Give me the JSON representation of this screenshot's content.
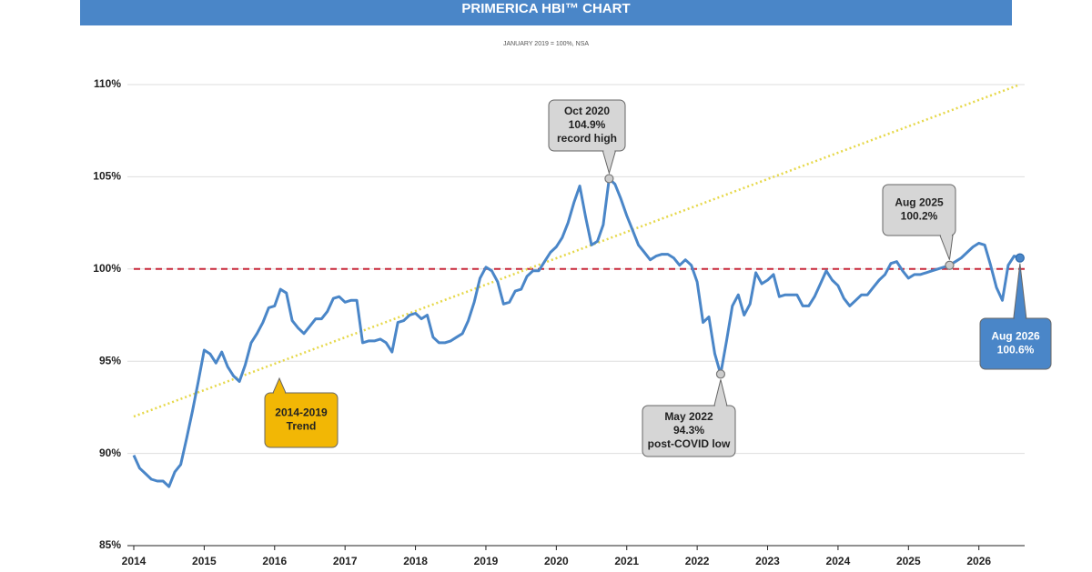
{
  "chart_data": {
    "type": "line",
    "title": "PRIMERICA HBI™ CHART",
    "subtitle": "JANUARY 2019 = 100%, NSA",
    "x": [
      "2014-01",
      "2014-02",
      "2014-03",
      "2014-04",
      "2014-05",
      "2014-06",
      "2014-07",
      "2014-08",
      "2014-09",
      "2014-10",
      "2014-11",
      "2014-12",
      "2015-01",
      "2015-02",
      "2015-03",
      "2015-04",
      "2015-05",
      "2015-06",
      "2015-07",
      "2015-08",
      "2015-09",
      "2015-10",
      "2015-11",
      "2015-12",
      "2016-01",
      "2016-02",
      "2016-03",
      "2016-04",
      "2016-05",
      "2016-06",
      "2016-07",
      "2016-08",
      "2016-09",
      "2016-10",
      "2016-11",
      "2016-12",
      "2017-01",
      "2017-02",
      "2017-03",
      "2017-04",
      "2017-05",
      "2017-06",
      "2017-07",
      "2017-08",
      "2017-09",
      "2017-10",
      "2017-11",
      "2017-12",
      "2018-01",
      "2018-02",
      "2018-03",
      "2018-04",
      "2018-05",
      "2018-06",
      "2018-07",
      "2018-08",
      "2018-09",
      "2018-10",
      "2018-11",
      "2018-12",
      "2019-01",
      "2019-02",
      "2019-03",
      "2019-04",
      "2019-05",
      "2019-06",
      "2019-07",
      "2019-08",
      "2019-09",
      "2019-10",
      "2019-11",
      "2019-12",
      "2020-01",
      "2020-02",
      "2020-03",
      "2020-04",
      "2020-05",
      "2020-06",
      "2020-07",
      "2020-08",
      "2020-09",
      "2020-10",
      "2020-11",
      "2020-12",
      "2021-01",
      "2021-02",
      "2021-03",
      "2021-04",
      "2021-05",
      "2021-06",
      "2021-07",
      "2021-08",
      "2021-09",
      "2021-10",
      "2021-11",
      "2021-12",
      "2022-01",
      "2022-02",
      "2022-03",
      "2022-04",
      "2022-05",
      "2022-06",
      "2022-07",
      "2022-08",
      "2022-09",
      "2022-10",
      "2022-11",
      "2022-12",
      "2023-01",
      "2023-02",
      "2023-03",
      "2023-04",
      "2023-05",
      "2023-06",
      "2023-07",
      "2023-08",
      "2023-09",
      "2023-10",
      "2023-11",
      "2023-12",
      "2024-01",
      "2024-02",
      "2024-03",
      "2024-04",
      "2024-05",
      "2024-06",
      "2024-07",
      "2024-08",
      "2024-09",
      "2024-10",
      "2024-11",
      "2024-12",
      "2025-01",
      "2025-02",
      "2025-03",
      "2025-04",
      "2025-05",
      "2025-06",
      "2025-07",
      "2025-08",
      "2025-09",
      "2025-10",
      "2025-11",
      "2025-12",
      "2026-01",
      "2026-02",
      "2026-03",
      "2026-04",
      "2026-05",
      "2026-06",
      "2026-07",
      "2026-08"
    ],
    "series": [
      {
        "color": "#4a86c8",
        "values": [
          89.9,
          89.2,
          88.9,
          88.6,
          88.5,
          88.5,
          88.2,
          89.0,
          89.4,
          90.8,
          92.3,
          93.9,
          95.6,
          95.4,
          94.9,
          95.5,
          94.7,
          94.2,
          93.9,
          94.8,
          96.0,
          96.5,
          97.1,
          97.9,
          98.0,
          98.9,
          98.7,
          97.2,
          96.8,
          96.5,
          96.9,
          97.3,
          97.3,
          97.7,
          98.4,
          98.5,
          98.2,
          98.3,
          98.3,
          96.0,
          96.1,
          96.1,
          96.2,
          96.0,
          95.5,
          97.1,
          97.2,
          97.5,
          97.6,
          97.3,
          97.5,
          96.3,
          96.0,
          96.0,
          96.1,
          96.3,
          96.5,
          97.2,
          98.2,
          99.5,
          100.1,
          99.9,
          99.3,
          98.1,
          98.2,
          98.8,
          98.9,
          99.6,
          99.9,
          99.9,
          100.4,
          100.9,
          101.2,
          101.7,
          102.5,
          103.6,
          104.5,
          102.8,
          101.3,
          101.5,
          102.4,
          104.9,
          104.6,
          103.8,
          102.9,
          102.1,
          101.3,
          100.9,
          100.5,
          100.7,
          100.8,
          100.8,
          100.6,
          100.2,
          100.5,
          100.2,
          99.3,
          97.1,
          97.4,
          95.4,
          94.3,
          96.1,
          98.0,
          98.6,
          97.5,
          98.1,
          99.8,
          99.2,
          99.4,
          99.7,
          98.5,
          98.6,
          98.6,
          98.6,
          98.0,
          98.0,
          98.5,
          99.2,
          99.9,
          99.4,
          99.1,
          98.4,
          98.0,
          98.3,
          98.6,
          98.6,
          99.0,
          99.4,
          99.7,
          100.3,
          100.4,
          99.9,
          99.5,
          99.7,
          99.7,
          99.8,
          99.9,
          100.0,
          100.1,
          100.2,
          100.4,
          100.6,
          100.9,
          101.2,
          101.4,
          101.3,
          100.2,
          99.0,
          98.3,
          100.2,
          100.7,
          100.6
        ]
      }
    ],
    "trend_line": {
      "x": [
        "2014-01",
        "2026-08"
      ],
      "values": [
        92,
        110
      ],
      "color": "#e6d84a"
    },
    "reference_line": {
      "value": 100,
      "color": "#c8283a"
    },
    "xlim": [
      2014,
      2026.65
    ],
    "xticks": [
      2014,
      2015,
      2016,
      2017,
      2018,
      2019,
      2020,
      2021,
      2022,
      2023,
      2024,
      2025,
      2026
    ],
    "ylim": [
      85,
      110
    ],
    "yticks": [
      {
        "value": 85,
        "label": "85%"
      },
      {
        "value": 90,
        "label": "90%"
      },
      {
        "value": 95,
        "label": "95%"
      },
      {
        "value": 100,
        "label": "100%"
      },
      {
        "value": 105,
        "label": "105%"
      },
      {
        "value": 110,
        "label": "110%"
      }
    ],
    "grid": true,
    "annotations": [
      {
        "x": "2020-10",
        "lines": [
          "Oct 2020",
          "104.9%",
          "record high"
        ],
        "color": "#d6d6d6"
      },
      {
        "x": "2022-05",
        "lines": [
          "May 2022",
          "94.3%",
          "post-COVID low"
        ],
        "color": "#d6d6d6"
      },
      {
        "x": "2025-08",
        "lines": [
          "Aug 2025",
          "100.2%"
        ],
        "color": "#d6d6d6"
      },
      {
        "x": "2026-08",
        "lines": [
          "Aug 2026",
          "100.6%"
        ],
        "color": "#4a86c8"
      },
      {
        "lines": [
          "2014-2019",
          "Trend"
        ],
        "color": "#f2b705"
      }
    ]
  }
}
